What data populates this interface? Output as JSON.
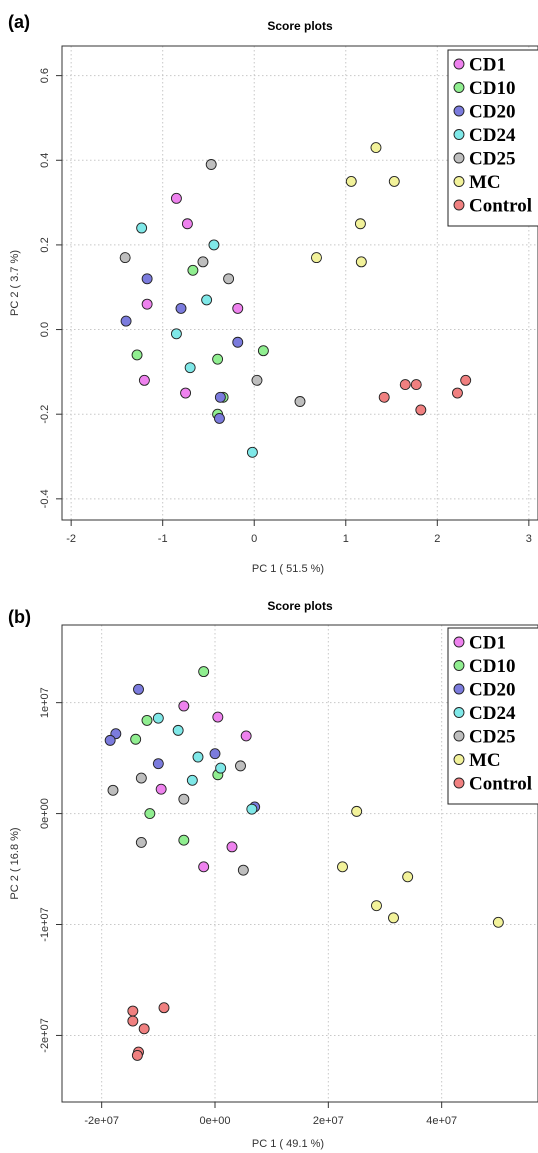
{
  "chart_data": [
    {
      "type": "scatter",
      "panel_label": "(a)",
      "title": "Score plots",
      "xlabel": "PC 1 ( 51.5 %)",
      "ylabel": "PC 2 ( 3.7 %)",
      "xlim": [
        -2.1,
        3.1
      ],
      "ylim": [
        -0.45,
        0.67
      ],
      "xticks": [
        -2,
        -1,
        0,
        1,
        2,
        3
      ],
      "xtick_labels": [
        "-2",
        "-1",
        "0",
        "1",
        "2",
        "3"
      ],
      "yticks": [
        -0.4,
        -0.2,
        0.0,
        0.2,
        0.4,
        0.6
      ],
      "ytick_labels": [
        "-0.4",
        "-0.2",
        "0.0",
        "0.2",
        "0.4",
        "0.6"
      ],
      "grid": true,
      "legend_position": "top-right",
      "series": [
        {
          "name": "CD1",
          "color": "#ee82ee",
          "points": [
            [
              -0.85,
              0.31
            ],
            [
              -0.73,
              0.25
            ],
            [
              -1.17,
              0.06
            ],
            [
              -0.18,
              0.05
            ],
            [
              -1.2,
              -0.12
            ],
            [
              -0.75,
              -0.15
            ]
          ]
        },
        {
          "name": "CD10",
          "color": "#90ee90",
          "points": [
            [
              -0.67,
              0.14
            ],
            [
              -1.28,
              -0.06
            ],
            [
              0.1,
              -0.05
            ],
            [
              -0.4,
              -0.07
            ],
            [
              -0.34,
              -0.16
            ],
            [
              -0.4,
              -0.2
            ]
          ]
        },
        {
          "name": "CD20",
          "color": "#7b7bdd",
          "points": [
            [
              -1.17,
              0.12
            ],
            [
              -0.8,
              0.05
            ],
            [
              -1.4,
              0.02
            ],
            [
              -0.18,
              -0.03
            ],
            [
              -0.37,
              -0.16
            ],
            [
              -0.38,
              -0.21
            ]
          ]
        },
        {
          "name": "CD24",
          "color": "#7fe8e8",
          "points": [
            [
              -1.23,
              0.24
            ],
            [
              -0.44,
              0.2
            ],
            [
              -0.52,
              0.07
            ],
            [
              -0.85,
              -0.01
            ],
            [
              -0.7,
              -0.09
            ],
            [
              -0.02,
              -0.29
            ]
          ]
        },
        {
          "name": "CD25",
          "color": "#bebebe",
          "points": [
            [
              -0.47,
              0.39
            ],
            [
              -1.41,
              0.17
            ],
            [
              -0.56,
              0.16
            ],
            [
              -0.28,
              0.12
            ],
            [
              0.03,
              -0.12
            ],
            [
              0.5,
              -0.17
            ]
          ]
        },
        {
          "name": "MC",
          "color": "#f2f29a",
          "points": [
            [
              1.33,
              0.43
            ],
            [
              1.06,
              0.35
            ],
            [
              1.53,
              0.35
            ],
            [
              1.16,
              0.25
            ],
            [
              0.68,
              0.17
            ],
            [
              1.17,
              0.16
            ]
          ]
        },
        {
          "name": "Control",
          "color": "#f08080",
          "points": [
            [
              2.31,
              -0.12
            ],
            [
              1.65,
              -0.13
            ],
            [
              1.77,
              -0.13
            ],
            [
              1.42,
              -0.16
            ],
            [
              2.22,
              -0.15
            ],
            [
              1.82,
              -0.19
            ]
          ]
        }
      ]
    },
    {
      "type": "scatter",
      "panel_label": "(b)",
      "title": "Score plots",
      "xlabel": "PC 1 ( 49.1 %)",
      "ylabel": "PC 2 ( 16.8 %)",
      "xlim": [
        -27000000,
        57000000
      ],
      "ylim": [
        -26000000,
        17000000
      ],
      "xticks": [
        -20000000,
        0,
        20000000,
        40000000
      ],
      "xtick_labels": [
        "-2e+07",
        "0e+00",
        "2e+07",
        "4e+07"
      ],
      "yticks": [
        -20000000,
        -10000000,
        0,
        10000000
      ],
      "ytick_labels": [
        "-2e+07",
        "-1e+07",
        "0e+00",
        "1e+07"
      ],
      "grid": true,
      "legend_position": "top-right",
      "series": [
        {
          "name": "CD1",
          "color": "#ee82ee",
          "points": [
            [
              -5500000,
              9700000
            ],
            [
              500000,
              8700000
            ],
            [
              5500000,
              7000000
            ],
            [
              -9500000,
              2200000
            ],
            [
              3000000,
              -3000000
            ],
            [
              -2000000,
              -4800000
            ]
          ]
        },
        {
          "name": "CD10",
          "color": "#90ee90",
          "points": [
            [
              -2000000,
              12800000
            ],
            [
              -12000000,
              8400000
            ],
            [
              -14000000,
              6700000
            ],
            [
              500000,
              3500000
            ],
            [
              -11500000,
              0
            ],
            [
              -5500000,
              -2400000
            ]
          ]
        },
        {
          "name": "CD20",
          "color": "#7b7bdd",
          "points": [
            [
              -13500000,
              11200000
            ],
            [
              -17500000,
              7200000
            ],
            [
              -18500000,
              6600000
            ],
            [
              0,
              5400000
            ],
            [
              -10000000,
              4500000
            ],
            [
              7000000,
              600000
            ]
          ]
        },
        {
          "name": "CD24",
          "color": "#7fe8e8",
          "points": [
            [
              -10000000,
              8600000
            ],
            [
              -6500000,
              7500000
            ],
            [
              -3000000,
              5100000
            ],
            [
              1000000,
              4100000
            ],
            [
              -4000000,
              3000000
            ],
            [
              6500000,
              400000
            ]
          ]
        },
        {
          "name": "CD25",
          "color": "#bebebe",
          "points": [
            [
              -18000000,
              2100000
            ],
            [
              -13000000,
              3200000
            ],
            [
              -5500000,
              1300000
            ],
            [
              4500000,
              4300000
            ],
            [
              -13000000,
              -2600000
            ],
            [
              5000000,
              -5100000
            ]
          ]
        },
        {
          "name": "MC",
          "color": "#f2f29a",
          "points": [
            [
              25000000,
              200000
            ],
            [
              22500000,
              -4800000
            ],
            [
              34000000,
              -5700000
            ],
            [
              28500000,
              -8300000
            ],
            [
              31500000,
              -9400000
            ],
            [
              50000000,
              -9800000
            ]
          ]
        },
        {
          "name": "Control",
          "color": "#f08080",
          "points": [
            [
              -14500000,
              -17800000
            ],
            [
              -9000000,
              -17500000
            ],
            [
              -14500000,
              -18700000
            ],
            [
              -12500000,
              -19400000
            ],
            [
              -13500000,
              -21500000
            ],
            [
              -13700000,
              -21800000
            ]
          ]
        }
      ]
    }
  ]
}
